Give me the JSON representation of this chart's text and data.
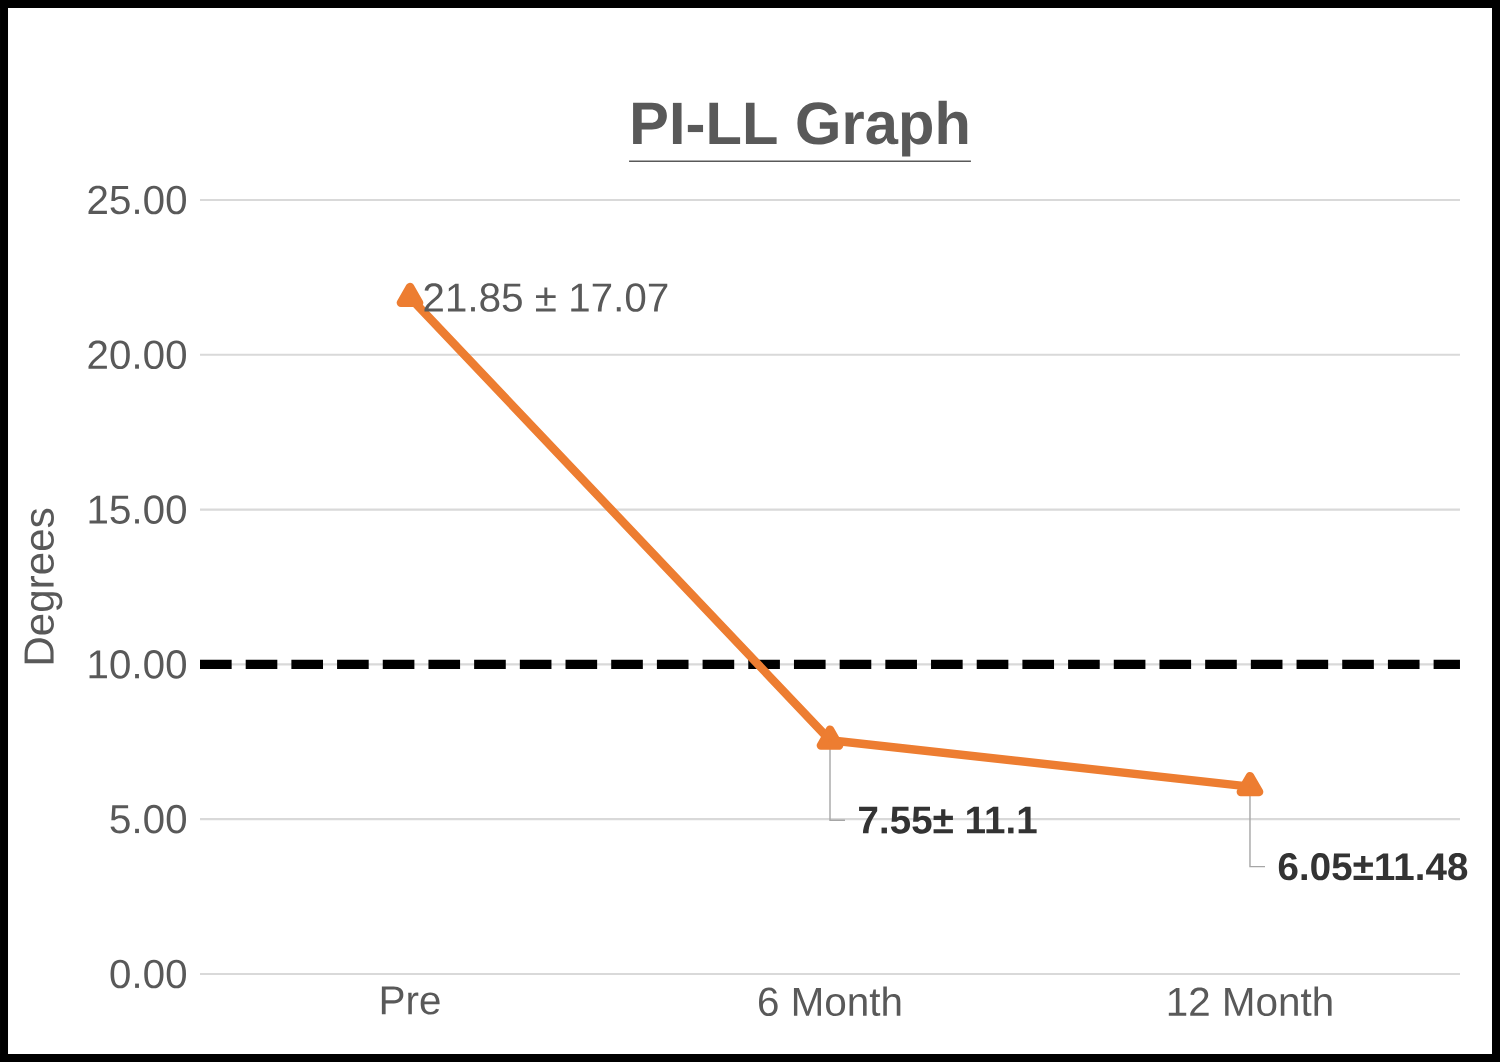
{
  "chart_data": {
    "type": "line",
    "title": "PI-LL Graph",
    "ylabel": "Degrees",
    "categories": [
      "Pre",
      "6 Month",
      "12 Month"
    ],
    "series": [
      {
        "color": "#ed7d31",
        "values": [
          21.85,
          7.55,
          6.05
        ],
        "value_labels": [
          "21.85 ± 17.07",
          "7.55± 11.1",
          "6.05±11.48"
        ]
      }
    ],
    "ylim": [
      0,
      25
    ],
    "yticks": [
      {
        "value": 0,
        "label": "0.00"
      },
      {
        "value": 5,
        "label": "5.00"
      },
      {
        "value": 10,
        "label": "10.00"
      },
      {
        "value": 15,
        "label": "15.00"
      },
      {
        "value": 20,
        "label": "20.00"
      },
      {
        "value": 25,
        "label": "25.00"
      }
    ],
    "grid": "y",
    "marker": "triangle",
    "line_style": "solid",
    "ref_lines": [
      {
        "axis": "y",
        "value": 10,
        "color": "#000000",
        "line_style": "dashed"
      }
    ]
  }
}
